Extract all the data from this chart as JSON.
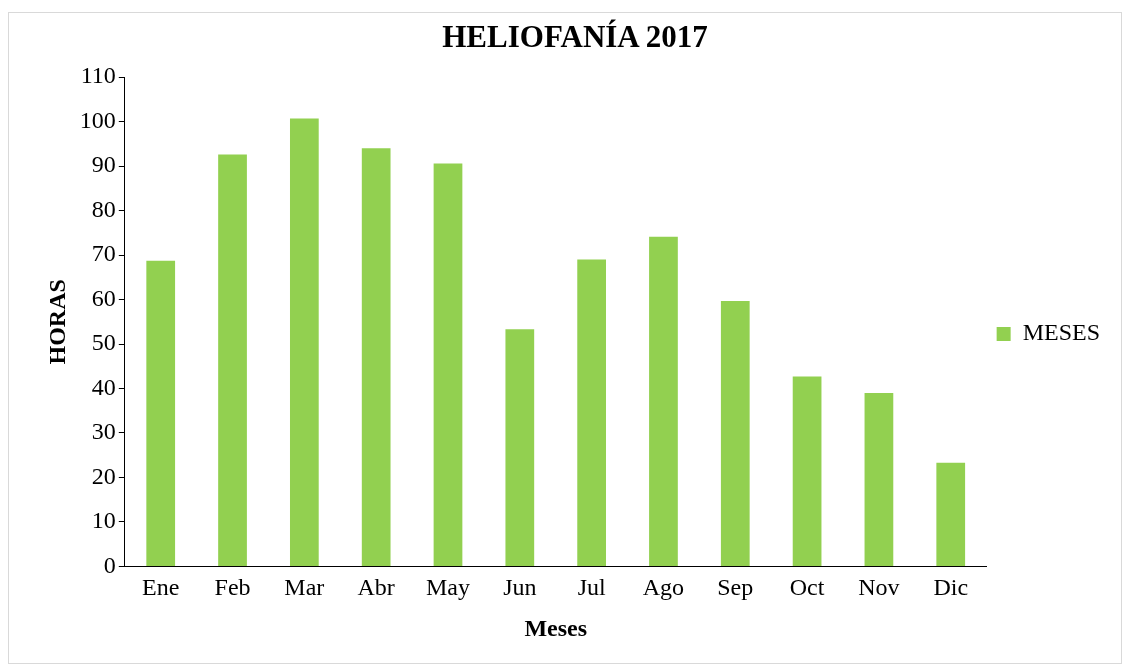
{
  "chart_data": {
    "type": "bar",
    "title": "HELIOFANÍA 2017",
    "xlabel": "Meses",
    "ylabel": "HORAS",
    "categories": [
      "Ene",
      "Feb",
      "Mar",
      "Abr",
      "May",
      "Jun",
      "Jul",
      "Ago",
      "Sep",
      "Oct",
      "Nov",
      "Dic"
    ],
    "series": [
      {
        "name": "MESES",
        "color": "#92d050",
        "values": [
          68.7,
          92.6,
          100.7,
          94.0,
          90.6,
          53.3,
          69.0,
          74.1,
          59.7,
          42.7,
          39.0,
          23.3
        ]
      }
    ],
    "ylim": [
      0,
      110
    ],
    "yticks": [
      0,
      10,
      20,
      30,
      40,
      50,
      60,
      70,
      80,
      90,
      100,
      110
    ],
    "grid": false,
    "legend": "right"
  }
}
